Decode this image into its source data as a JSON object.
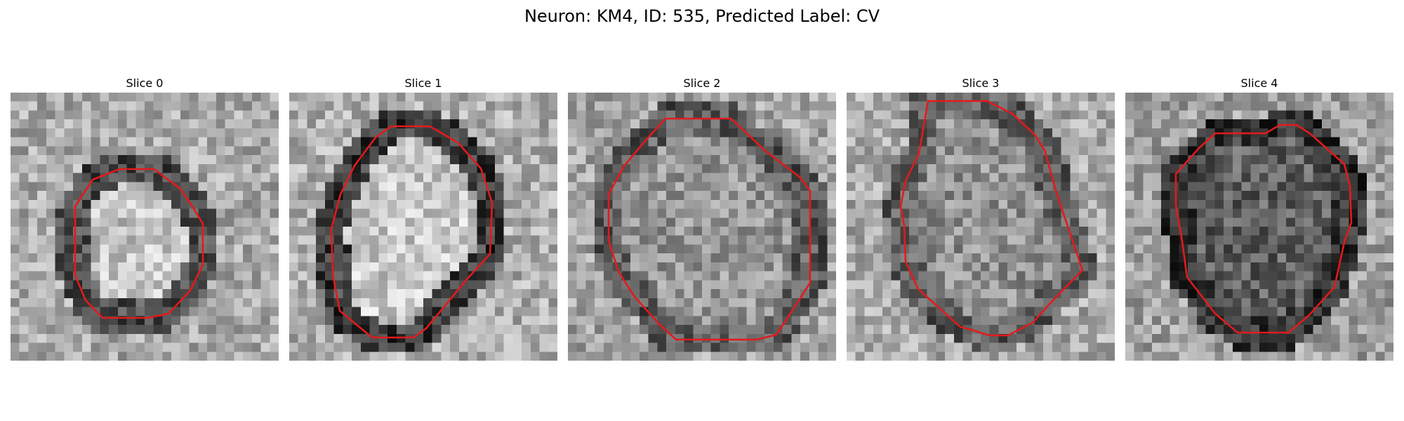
{
  "figure": {
    "title": "Neuron: KM4, ID: 535, Predicted Label: CV"
  },
  "panels": [
    {
      "title": "Slice 0"
    },
    {
      "title": "Slice 1"
    },
    {
      "title": "Slice 2"
    },
    {
      "title": "Slice 3"
    },
    {
      "title": "Slice 4"
    }
  ],
  "colors": {
    "contour": "#e31a1c",
    "background": "#ffffff"
  }
}
